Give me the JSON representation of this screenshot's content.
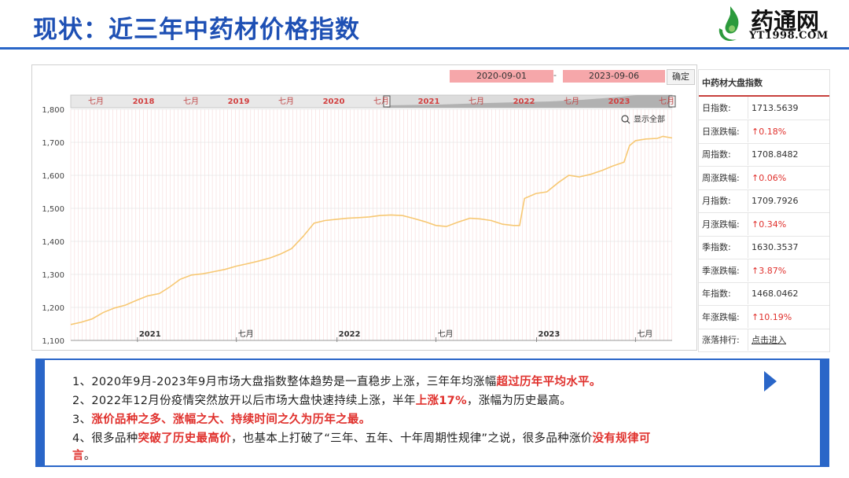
{
  "slide": {
    "title": "现状：近三年中药材价格指数"
  },
  "logo": {
    "name": "药通网",
    "url_text": "YT1998.COM"
  },
  "controls": {
    "start_date": "2020-09-01",
    "separator": "-",
    "end_date": "2023-09-06",
    "confirm_label": "确定",
    "show_all_label": "显示全部"
  },
  "navigator": {
    "labels": [
      "七月",
      "2018",
      "七月",
      "2019",
      "七月",
      "2020",
      "七月",
      "2021",
      "七月",
      "2022",
      "七月",
      "2023",
      "七月"
    ]
  },
  "panel": {
    "title": "中药材大盘指数",
    "rows": [
      {
        "label": "日指数:",
        "value": "1713.5639",
        "style": "normal"
      },
      {
        "label": "日涨跌幅:",
        "value": "↑0.18%",
        "style": "red"
      },
      {
        "label": "周指数:",
        "value": "1708.8482",
        "style": "normal"
      },
      {
        "label": "周涨跌幅:",
        "value": "↑0.06%",
        "style": "red"
      },
      {
        "label": "月指数:",
        "value": "1709.7926",
        "style": "normal"
      },
      {
        "label": "月涨跌幅:",
        "value": "↑0.34%",
        "style": "red"
      },
      {
        "label": "季指数:",
        "value": "1630.3537",
        "style": "normal"
      },
      {
        "label": "季涨跌幅:",
        "value": "↑3.87%",
        "style": "red"
      },
      {
        "label": "年指数:",
        "value": "1468.0462",
        "style": "normal"
      },
      {
        "label": "年涨跌幅:",
        "value": "↑10.19%",
        "style": "red"
      },
      {
        "label": "涨落排行:",
        "value": "点击进入",
        "style": "link"
      }
    ]
  },
  "bullets": [
    [
      {
        "t": "1、2020年9月-2023年9月市场大盘指数整体趋势是一直稳步上涨，三年年均涨幅",
        "r": false
      },
      {
        "t": "超过历年平均水平。",
        "r": true
      }
    ],
    [
      {
        "t": "2、2022年12月份疫情突然放开以后市场大盘快速持续上涨，半年",
        "r": false
      },
      {
        "t": "上涨17%",
        "r": true
      },
      {
        "t": "，涨幅为历史最高。",
        "r": false
      }
    ],
    [
      {
        "t": "3、",
        "r": false
      },
      {
        "t": "涨价品种之多、涨幅之大、持续时间之久为历年之最。",
        "r": true
      }
    ],
    [
      {
        "t": "4、很多品种",
        "r": false
      },
      {
        "t": "突破了历史最高价",
        "r": true
      },
      {
        "t": "，也基本上打破了“三年、五年、十年周期性规律”之说，很多品种涨价",
        "r": false
      },
      {
        "t": "没有规律可",
        "r": true
      }
    ],
    [
      {
        "t": "言",
        "r": true
      },
      {
        "t": "。",
        "r": false
      }
    ]
  ],
  "chart_data": {
    "type": "line",
    "title": "",
    "xlabel": "",
    "ylabel": "",
    "ylim": [
      1100,
      1800
    ],
    "yticks": [
      "1,100",
      "1,200",
      "1,300",
      "1,400",
      "1,500",
      "1,600",
      "1,700",
      "1,800"
    ],
    "xlim": [
      "2020-09-01",
      "2023-09-06"
    ],
    "xticks": [
      {
        "date": "2021-01-01",
        "label": "2021"
      },
      {
        "date": "2021-07-01",
        "label": "七月"
      },
      {
        "date": "2022-01-01",
        "label": "2022"
      },
      {
        "date": "2022-07-01",
        "label": "七月"
      },
      {
        "date": "2023-01-01",
        "label": "2023"
      },
      {
        "date": "2023-07-01",
        "label": "七月"
      }
    ],
    "grid": true,
    "color": "#f7c873",
    "series": [
      {
        "points": [
          [
            "2020-09-01",
            1148
          ],
          [
            "2020-09-20",
            1155
          ],
          [
            "2020-10-10",
            1165
          ],
          [
            "2020-10-31",
            1185
          ],
          [
            "2020-11-20",
            1198
          ],
          [
            "2020-12-10",
            1207
          ],
          [
            "2020-12-31",
            1222
          ],
          [
            "2021-01-20",
            1235
          ],
          [
            "2021-02-10",
            1242
          ],
          [
            "2021-03-01",
            1262
          ],
          [
            "2021-03-20",
            1285
          ],
          [
            "2021-04-10",
            1298
          ],
          [
            "2021-05-01",
            1302
          ],
          [
            "2021-05-20",
            1308
          ],
          [
            "2021-06-10",
            1315
          ],
          [
            "2021-07-01",
            1325
          ],
          [
            "2021-07-20",
            1332
          ],
          [
            "2021-08-10",
            1340
          ],
          [
            "2021-09-01",
            1350
          ],
          [
            "2021-09-20",
            1362
          ],
          [
            "2021-10-10",
            1378
          ],
          [
            "2021-10-31",
            1415
          ],
          [
            "2021-11-20",
            1455
          ],
          [
            "2021-12-10",
            1463
          ],
          [
            "2021-12-31",
            1467
          ],
          [
            "2022-01-20",
            1470
          ],
          [
            "2022-02-10",
            1472
          ],
          [
            "2022-03-01",
            1474
          ],
          [
            "2022-03-20",
            1478
          ],
          [
            "2022-04-10",
            1480
          ],
          [
            "2022-05-01",
            1478
          ],
          [
            "2022-05-20",
            1470
          ],
          [
            "2022-06-10",
            1460
          ],
          [
            "2022-07-01",
            1448
          ],
          [
            "2022-07-20",
            1445
          ],
          [
            "2022-08-10",
            1458
          ],
          [
            "2022-09-01",
            1470
          ],
          [
            "2022-09-20",
            1468
          ],
          [
            "2022-10-10",
            1463
          ],
          [
            "2022-10-31",
            1452
          ],
          [
            "2022-11-20",
            1448
          ],
          [
            "2022-12-01",
            1448
          ],
          [
            "2022-12-10",
            1530
          ],
          [
            "2022-12-31",
            1545
          ],
          [
            "2023-01-20",
            1550
          ],
          [
            "2023-02-10",
            1578
          ],
          [
            "2023-03-01",
            1600
          ],
          [
            "2023-03-20",
            1595
          ],
          [
            "2023-04-10",
            1603
          ],
          [
            "2023-05-01",
            1615
          ],
          [
            "2023-05-20",
            1628
          ],
          [
            "2023-06-10",
            1640
          ],
          [
            "2023-06-20",
            1690
          ],
          [
            "2023-07-01",
            1705
          ],
          [
            "2023-07-20",
            1710
          ],
          [
            "2023-08-10",
            1712
          ],
          [
            "2023-08-20",
            1718
          ],
          [
            "2023-09-06",
            1713
          ]
        ]
      }
    ]
  }
}
